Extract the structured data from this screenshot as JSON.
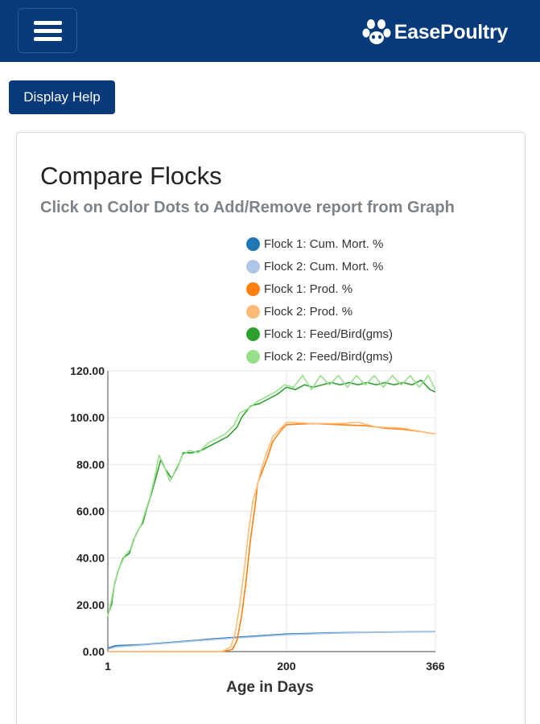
{
  "header": {
    "menu_icon": "hamburger-icon",
    "brand_name": "EasePoultry",
    "brand_icon": "paw-logo-icon",
    "background_color": "#063a7a"
  },
  "help_button": {
    "label": "Display Help"
  },
  "card": {
    "title": "Compare Flocks",
    "subtitle": "Click on Color Dots to Add/Remove report from Graph"
  },
  "legend": [
    {
      "label": "Flock 1: Cum. Mort. %",
      "color": "#1f77b4"
    },
    {
      "label": "Flock 2: Cum. Mort. %",
      "color": "#aec7e8"
    },
    {
      "label": "Flock 1: Prod. %",
      "color": "#ff7f0e"
    },
    {
      "label": "Flock 2: Prod. %",
      "color": "#ffbb78"
    },
    {
      "label": "Flock 1: Feed/Bird(gms)",
      "color": "#2ca02c"
    },
    {
      "label": "Flock 2: Feed/Bird(gms)",
      "color": "#98df8a"
    }
  ],
  "chart_data": {
    "type": "line",
    "xlabel": "Age in Days",
    "ylabel": "",
    "xlim": [
      1,
      366
    ],
    "ylim": [
      0,
      120
    ],
    "x_ticks": [
      1,
      200,
      366
    ],
    "y_ticks": [
      "0.00",
      "20.00",
      "40.00",
      "60.00",
      "80.00",
      "100.00",
      "120.00"
    ],
    "grid": true,
    "legend_position": "top",
    "series": [
      {
        "name": "Flock 1: Cum. Mort. %",
        "color": "#1f77b4",
        "points": [
          [
            1,
            1.5
          ],
          [
            10,
            2.5
          ],
          [
            40,
            3
          ],
          [
            80,
            4.2
          ],
          [
            120,
            5.5
          ],
          [
            160,
            6.5
          ],
          [
            200,
            7.5
          ],
          [
            250,
            8
          ],
          [
            300,
            8.3
          ],
          [
            366,
            8.6
          ]
        ]
      },
      {
        "name": "Flock 2: Cum. Mort. %",
        "color": "#aec7e8",
        "points": [
          [
            1,
            1
          ],
          [
            10,
            2
          ],
          [
            40,
            2.8
          ],
          [
            80,
            4
          ],
          [
            120,
            5.2
          ],
          [
            160,
            6.2
          ],
          [
            200,
            7.2
          ],
          [
            250,
            7.8
          ],
          [
            300,
            8.2
          ],
          [
            366,
            8.5
          ]
        ]
      },
      {
        "name": "Flock 1: Prod. %",
        "color": "#ff7f0e",
        "points": [
          [
            1,
            0
          ],
          [
            130,
            0
          ],
          [
            140,
            1
          ],
          [
            145,
            5
          ],
          [
            150,
            15
          ],
          [
            155,
            30
          ],
          [
            160,
            48
          ],
          [
            165,
            62
          ],
          [
            168,
            72
          ],
          [
            172,
            76
          ],
          [
            178,
            82
          ],
          [
            185,
            90
          ],
          [
            195,
            95
          ],
          [
            200,
            97
          ],
          [
            230,
            97.5
          ],
          [
            260,
            97
          ],
          [
            290,
            96.5
          ],
          [
            310,
            95.5
          ],
          [
            330,
            95
          ],
          [
            350,
            94
          ],
          [
            366,
            93
          ]
        ]
      },
      {
        "name": "Flock 2: Prod. %",
        "color": "#ffbb78",
        "points": [
          [
            1,
            0
          ],
          [
            128,
            0
          ],
          [
            138,
            2
          ],
          [
            143,
            8
          ],
          [
            148,
            20
          ],
          [
            153,
            35
          ],
          [
            158,
            52
          ],
          [
            163,
            65
          ],
          [
            167,
            70
          ],
          [
            172,
            78
          ],
          [
            178,
            85
          ],
          [
            185,
            92
          ],
          [
            195,
            96
          ],
          [
            200,
            98
          ],
          [
            230,
            97.5
          ],
          [
            260,
            97.5
          ],
          [
            280,
            98
          ],
          [
            300,
            96
          ],
          [
            330,
            95.5
          ],
          [
            350,
            94
          ],
          [
            366,
            93
          ]
        ]
      },
      {
        "name": "Flock 1: Feed/Bird(gms)",
        "color": "#2ca02c",
        "points": [
          [
            1,
            16
          ],
          [
            5,
            20
          ],
          [
            8,
            28
          ],
          [
            12,
            34
          ],
          [
            18,
            40
          ],
          [
            25,
            42
          ],
          [
            30,
            48
          ],
          [
            35,
            52
          ],
          [
            40,
            55
          ],
          [
            45,
            62
          ],
          [
            50,
            68
          ],
          [
            55,
            75
          ],
          [
            60,
            82
          ],
          [
            65,
            78
          ],
          [
            72,
            74
          ],
          [
            80,
            80
          ],
          [
            85,
            85
          ],
          [
            95,
            85
          ],
          [
            105,
            86
          ],
          [
            115,
            88
          ],
          [
            125,
            90
          ],
          [
            135,
            92
          ],
          [
            145,
            96
          ],
          [
            150,
            100
          ],
          [
            160,
            105
          ],
          [
            170,
            106
          ],
          [
            180,
            108
          ],
          [
            190,
            110
          ],
          [
            200,
            113
          ],
          [
            210,
            112
          ],
          [
            220,
            114
          ],
          [
            230,
            113
          ],
          [
            240,
            114
          ],
          [
            250,
            115
          ],
          [
            260,
            114
          ],
          [
            270,
            115
          ],
          [
            280,
            114
          ],
          [
            290,
            115
          ],
          [
            300,
            114
          ],
          [
            310,
            115
          ],
          [
            320,
            114
          ],
          [
            330,
            115
          ],
          [
            340,
            114
          ],
          [
            350,
            116
          ],
          [
            360,
            112
          ],
          [
            366,
            111
          ]
        ]
      },
      {
        "name": "Flock 2: Feed/Bird(gms)",
        "color": "#98df8a",
        "points": [
          [
            1,
            15
          ],
          [
            5,
            22
          ],
          [
            9,
            30
          ],
          [
            14,
            36
          ],
          [
            20,
            41
          ],
          [
            27,
            44
          ],
          [
            32,
            50
          ],
          [
            38,
            54
          ],
          [
            43,
            60
          ],
          [
            48,
            66
          ],
          [
            53,
            74
          ],
          [
            58,
            84
          ],
          [
            63,
            80
          ],
          [
            70,
            73
          ],
          [
            78,
            78
          ],
          [
            84,
            84
          ],
          [
            92,
            86
          ],
          [
            102,
            85
          ],
          [
            112,
            89
          ],
          [
            122,
            91
          ],
          [
            132,
            93
          ],
          [
            142,
            97
          ],
          [
            148,
            102
          ],
          [
            158,
            104
          ],
          [
            168,
            107
          ],
          [
            178,
            109
          ],
          [
            188,
            111
          ],
          [
            198,
            114
          ],
          [
            208,
            113
          ],
          [
            218,
            118
          ],
          [
            228,
            112
          ],
          [
            238,
            118
          ],
          [
            248,
            114
          ],
          [
            258,
            118
          ],
          [
            268,
            113
          ],
          [
            278,
            118
          ],
          [
            288,
            114
          ],
          [
            298,
            118
          ],
          [
            308,
            113
          ],
          [
            318,
            118
          ],
          [
            328,
            114
          ],
          [
            338,
            118
          ],
          [
            348,
            113
          ],
          [
            358,
            118
          ],
          [
            366,
            112
          ]
        ]
      }
    ]
  }
}
